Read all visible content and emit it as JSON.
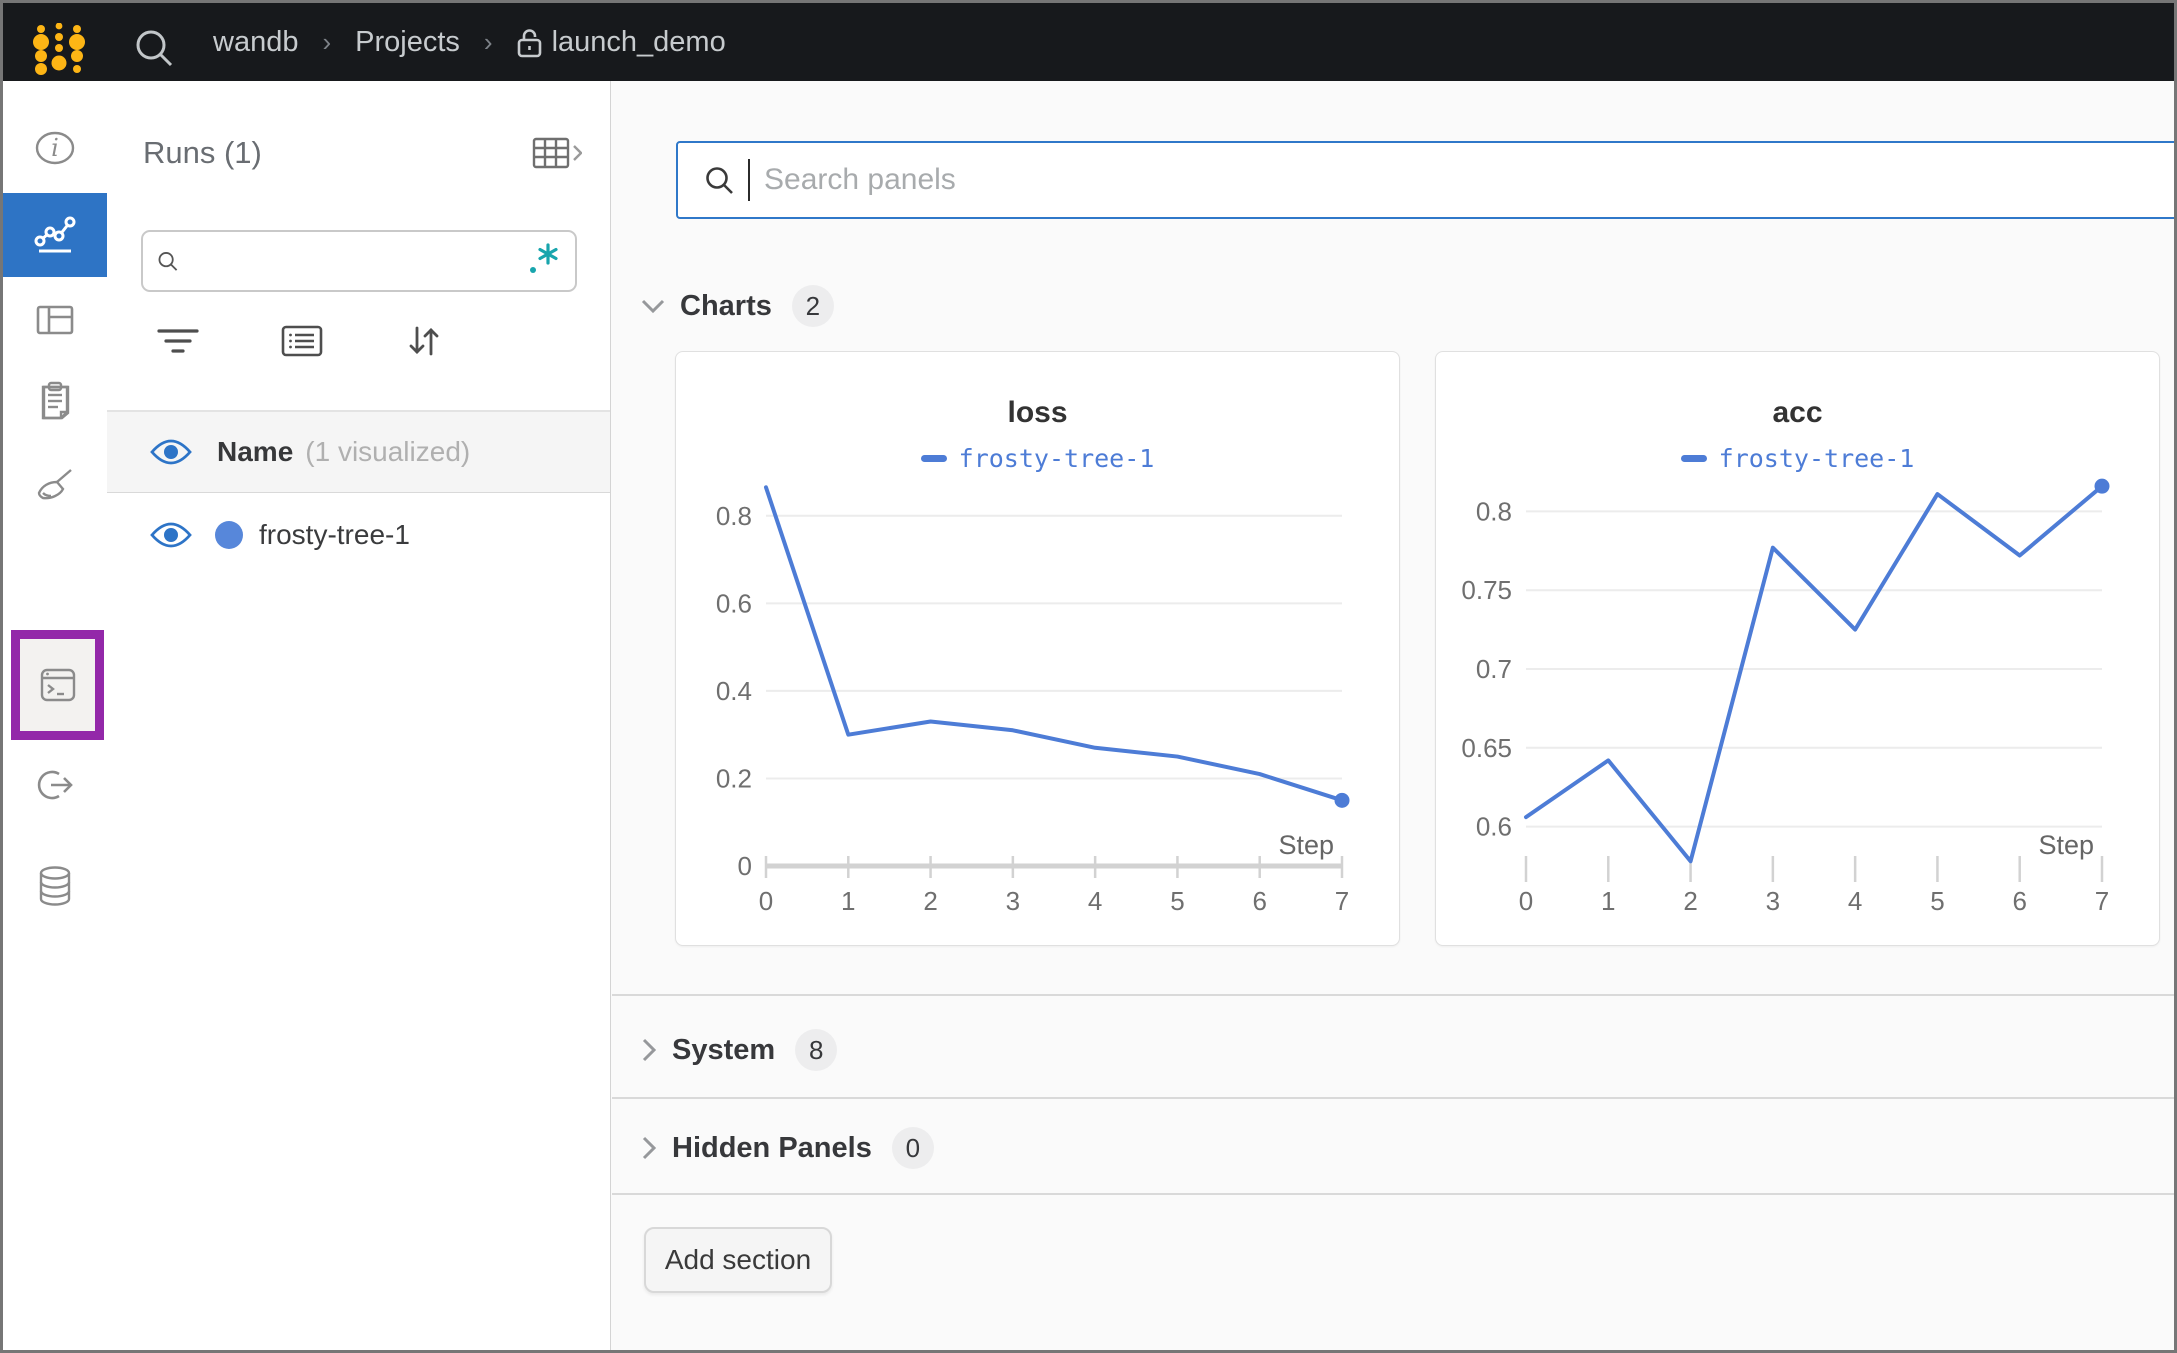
{
  "topbar": {
    "breadcrumb": [
      "wandb",
      "Projects",
      "launch_demo"
    ],
    "separator": "›"
  },
  "rail": {
    "tooltip": "Jobs",
    "items": [
      "overview",
      "workspace-charts",
      "panels",
      "logs",
      "sweeps",
      "jobs",
      "automations",
      "artifacts"
    ],
    "active_item": "workspace-charts"
  },
  "runs_panel": {
    "title": "Runs (1)",
    "search_value": "",
    "header_name": "Name",
    "header_suffix": "(1 visualized)",
    "run_name": "frosty-tree-1",
    "run_color": "#5787da"
  },
  "main": {
    "search_placeholder": "Search panels",
    "sections": [
      {
        "label": "Charts",
        "count": "2",
        "state": "expanded"
      },
      {
        "label": "System",
        "count": "8",
        "state": "collapsed"
      },
      {
        "label": "Hidden Panels",
        "count": "0",
        "state": "collapsed"
      }
    ],
    "add_section_label": "Add section"
  },
  "colors": {
    "topbar_bg": "#17191c",
    "logo_gold": "#fdb515",
    "active_nav_blue": "#2e74c5",
    "jobs_highlight_purple": "#9328a9",
    "regex_teal": "#18a5ad",
    "eye_blue": "#2d74c7",
    "line_blue": "#4d7cd6",
    "search_focus_blue": "#2f78c9",
    "grid": "#ececec",
    "axis": "#d2d2d2",
    "tick_text": "#6f6f6f"
  },
  "chart_data": [
    {
      "type": "line",
      "title": "loss",
      "x": [
        0,
        1,
        2,
        3,
        4,
        5,
        6,
        7
      ],
      "series": [
        {
          "name": "frosty-tree-1",
          "color": "#4d7cd6",
          "values": [
            0.865,
            0.3,
            0.33,
            0.31,
            0.27,
            0.25,
            0.21,
            0.15
          ]
        }
      ],
      "xlabel": "Step",
      "xticks": [
        0,
        1,
        2,
        3,
        4,
        5,
        6,
        7
      ],
      "yticks": [
        0,
        0.2,
        0.4,
        0.6,
        0.8
      ],
      "ylim": [
        0,
        0.9
      ],
      "axis_line": true,
      "end_marker": true,
      "legend_position": "top-center",
      "grid": true
    },
    {
      "type": "line",
      "title": "acc",
      "x": [
        0,
        1,
        2,
        3,
        4,
        5,
        6,
        7
      ],
      "series": [
        {
          "name": "frosty-tree-1",
          "color": "#4d7cd6",
          "values": [
            0.606,
            0.642,
            0.578,
            0.777,
            0.725,
            0.811,
            0.772,
            0.816
          ]
        }
      ],
      "xlabel": "Step",
      "xticks": [
        0,
        1,
        2,
        3,
        4,
        5,
        6,
        7
      ],
      "yticks": [
        0.6,
        0.65,
        0.7,
        0.75,
        0.8
      ],
      "ylim": [
        0.575,
        0.825
      ],
      "axis_line": false,
      "end_marker": true,
      "legend_position": "top-center",
      "grid": true
    }
  ]
}
